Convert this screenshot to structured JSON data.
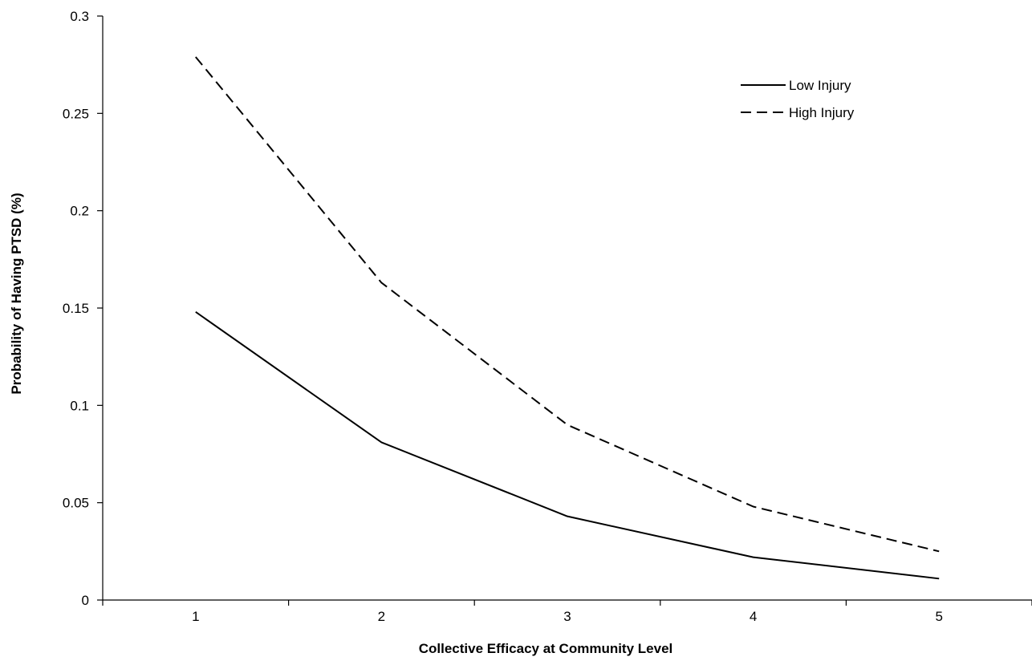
{
  "chart_data": {
    "type": "line",
    "title": "",
    "xlabel": "Collective Efficacy at Community Level",
    "ylabel": "Probability of Having PTSD (%)",
    "x": [
      1,
      2,
      3,
      4,
      5
    ],
    "x_tick_labels": [
      "1",
      "2",
      "3",
      "4",
      "5"
    ],
    "xlim": [
      0.5,
      5.5
    ],
    "ylim": [
      0,
      0.3
    ],
    "y_ticks": [
      0,
      0.05,
      0.1,
      0.15,
      0.2,
      0.25,
      0.3
    ],
    "y_tick_labels": [
      "0",
      "0.05",
      "0.1",
      "0.15",
      "0.2",
      "0.25",
      "0.3"
    ],
    "grid": false,
    "legend_position": "top-right",
    "series": [
      {
        "name": "Low Injury",
        "values": [
          0.148,
          0.081,
          0.043,
          0.022,
          0.011
        ],
        "line_style": "solid",
        "color": "#000000"
      },
      {
        "name": "High Injury",
        "values": [
          0.279,
          0.163,
          0.09,
          0.048,
          0.025
        ],
        "line_style": "dashed",
        "color": "#000000"
      }
    ]
  }
}
